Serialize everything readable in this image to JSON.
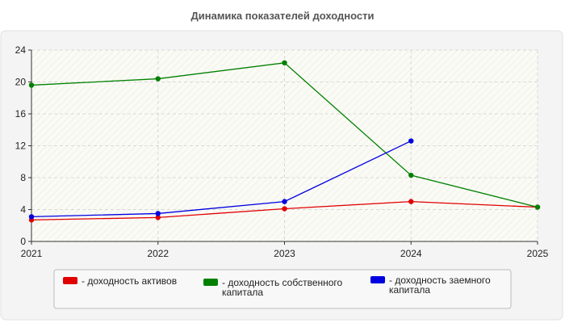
{
  "chart_data": {
    "type": "line",
    "title": "Динамика показателей доходности",
    "xlabel": "",
    "ylabel": "",
    "x": [
      "2021",
      "2022",
      "2023",
      "2024",
      "2025"
    ],
    "xlim": [
      2021,
      2025
    ],
    "ylim": [
      0,
      24
    ],
    "yticks": [
      0,
      4,
      8,
      12,
      16,
      20,
      24
    ],
    "grid": true,
    "legend_position": "bottom",
    "series": [
      {
        "name": "- доходность активов",
        "color": "#e00000",
        "values": [
          2.7,
          3.0,
          4.1,
          5.0,
          4.3
        ]
      },
      {
        "name": "- доходность собственного капитала",
        "color": "#008000",
        "values": [
          19.6,
          20.4,
          22.4,
          8.3,
          4.3
        ]
      },
      {
        "name": "- доходность заемного капитала",
        "color": "#0000e0",
        "values": [
          3.1,
          3.5,
          5.0,
          12.6,
          null
        ]
      }
    ]
  }
}
